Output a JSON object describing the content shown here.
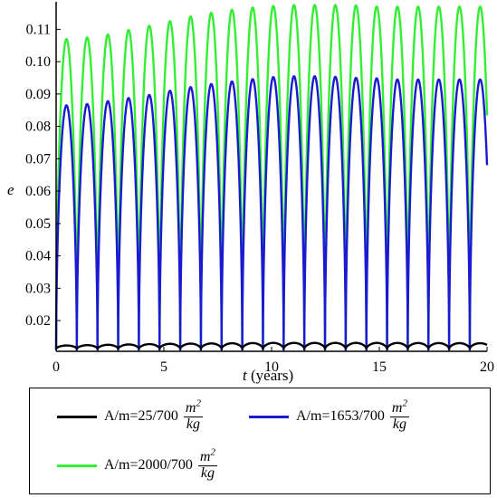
{
  "chart_data": {
    "type": "line",
    "xlabel_var": "t",
    "xlabel_unit": " (years)",
    "ylabel": "e",
    "xlim": [
      0,
      20
    ],
    "ylim": [
      0.0105,
      0.1185
    ],
    "x_ticks": [
      "0",
      "5",
      "10",
      "15",
      "20"
    ],
    "y_ticks": [
      "0.02",
      "0.03",
      "0.04",
      "0.05",
      "0.06",
      "0.07",
      "0.08",
      "0.09",
      "0.10",
      "0.11"
    ],
    "grid": false,
    "legend_position": "bottom",
    "series": [
      {
        "name": "A/m=25/700",
        "unit_num": "m",
        "unit_sup": "2",
        "unit_den": "kg",
        "color": "#000000",
        "period_years": 0.96,
        "min_value": 0.0113,
        "peaks": [
          [
            0.5,
            0.0123
          ],
          [
            5.0,
            0.0128
          ],
          [
            10.0,
            0.0131
          ],
          [
            15.0,
            0.0131
          ],
          [
            19.5,
            0.013
          ]
        ]
      },
      {
        "name": "A/m=1653/700",
        "unit_num": "m",
        "unit_sup": "2",
        "unit_den": "kg",
        "color": "#1a1ad0",
        "period_years": 0.96,
        "min_value": 0.011,
        "peaks": [
          [
            0.65,
            0.0865
          ],
          [
            1.6,
            0.087
          ],
          [
            2.6,
            0.088
          ],
          [
            3.6,
            0.089
          ],
          [
            4.6,
            0.09
          ],
          [
            5.6,
            0.0915
          ],
          [
            6.6,
            0.0925
          ],
          [
            7.6,
            0.0935
          ],
          [
            8.6,
            0.0942
          ],
          [
            9.6,
            0.095
          ],
          [
            10.6,
            0.0955
          ],
          [
            11.6,
            0.0955
          ],
          [
            12.6,
            0.0955
          ],
          [
            13.6,
            0.095
          ],
          [
            14.6,
            0.095
          ],
          [
            15.6,
            0.0945
          ],
          [
            16.6,
            0.0945
          ],
          [
            17.6,
            0.0945
          ],
          [
            18.6,
            0.0945
          ],
          [
            19.6,
            0.0945
          ]
        ]
      },
      {
        "name": "A/m=2000/700",
        "unit_num": "m",
        "unit_sup": "2",
        "unit_den": "kg",
        "color": "#33ee33",
        "period_years": 0.96,
        "min_value": 0.011,
        "peaks": [
          [
            0.5,
            0.107
          ],
          [
            1.5,
            0.1075
          ],
          [
            2.5,
            0.1085
          ],
          [
            3.5,
            0.11
          ],
          [
            4.6,
            0.1115
          ],
          [
            5.6,
            0.113
          ],
          [
            6.6,
            0.1145
          ],
          [
            7.6,
            0.1155
          ],
          [
            8.6,
            0.1165
          ],
          [
            9.7,
            0.117
          ],
          [
            10.7,
            0.1175
          ],
          [
            11.7,
            0.1175
          ],
          [
            12.7,
            0.1175
          ],
          [
            13.7,
            0.1175
          ],
          [
            14.7,
            0.117
          ],
          [
            15.7,
            0.117
          ],
          [
            16.7,
            0.117
          ],
          [
            17.7,
            0.117
          ],
          [
            18.7,
            0.117
          ],
          [
            19.7,
            0.117
          ]
        ]
      }
    ]
  }
}
